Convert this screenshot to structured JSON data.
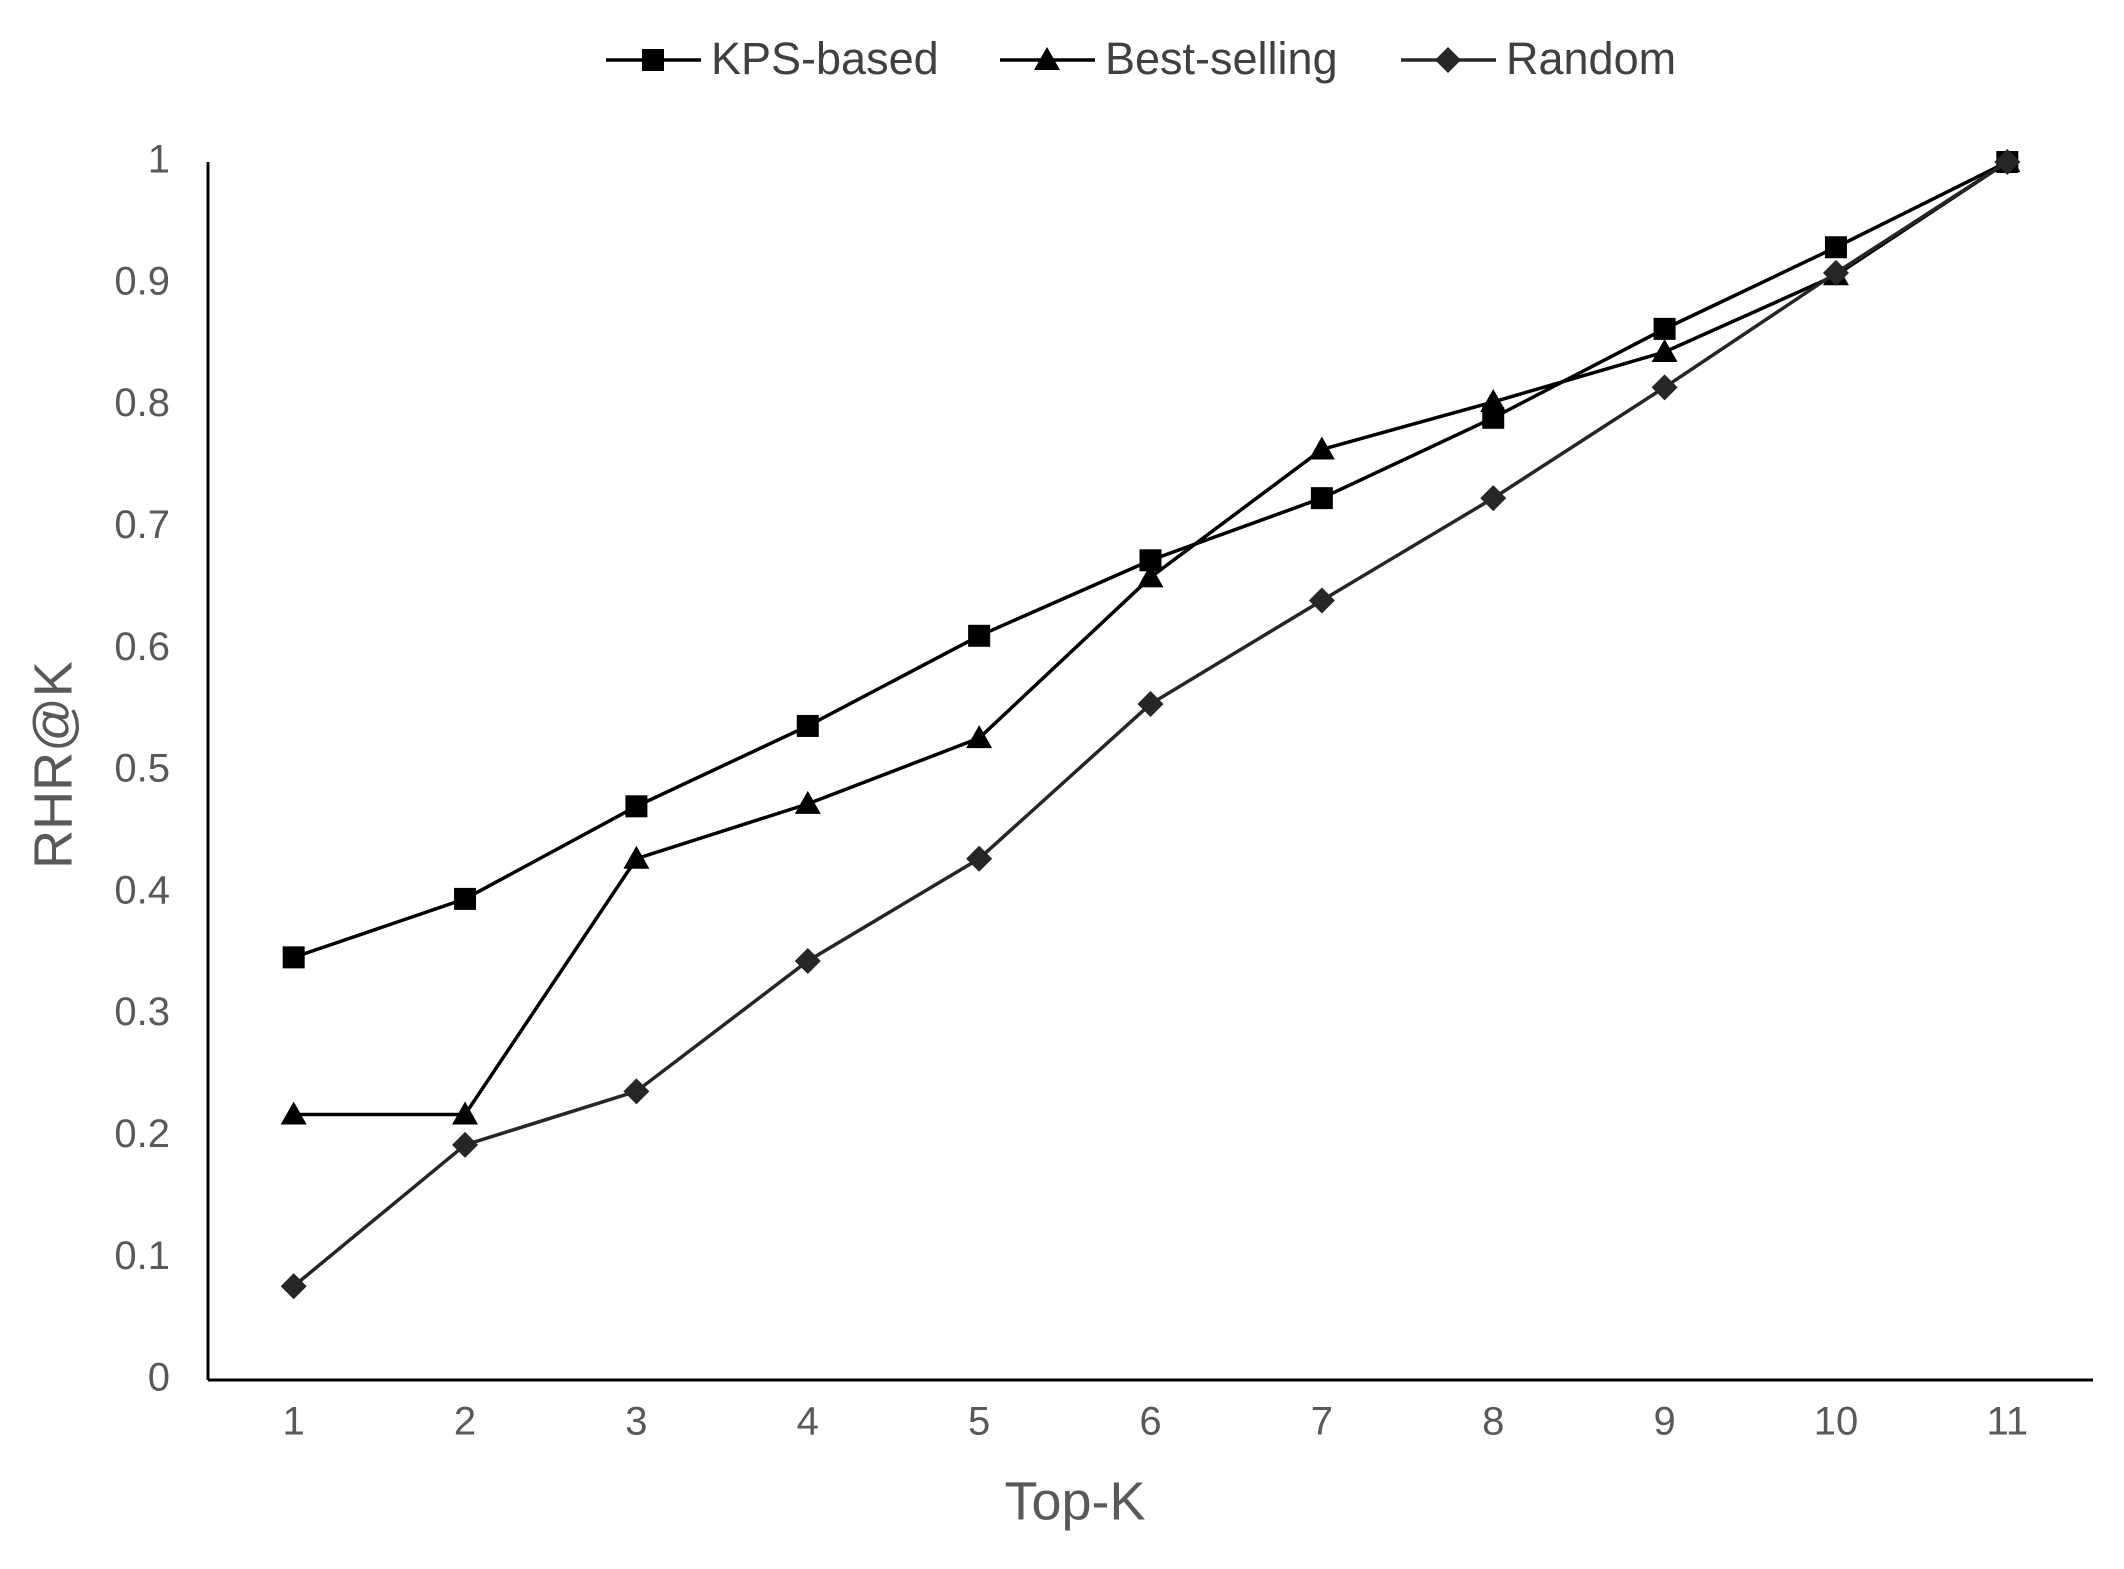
{
  "chart_data": {
    "type": "line",
    "x_label": "Top-K",
    "y_label": "RHR@K",
    "categories": [
      1,
      2,
      3,
      4,
      5,
      6,
      7,
      8,
      9,
      10,
      11
    ],
    "series": [
      {
        "name": "KPS-based",
        "color": "#000000",
        "marker": "square",
        "values": [
          0.347,
          0.395,
          0.471,
          0.537,
          0.611,
          0.673,
          0.724,
          0.79,
          0.863,
          0.93,
          1.0
        ]
      },
      {
        "name": "Best-selling",
        "color": "#000000",
        "marker": "triangle",
        "values": [
          0.218,
          0.218,
          0.428,
          0.473,
          0.527,
          0.659,
          0.764,
          0.803,
          0.844,
          0.907,
          1.0
        ]
      },
      {
        "name": "Random",
        "color": "#262626",
        "marker": "diamond",
        "values": [
          0.077,
          0.193,
          0.237,
          0.344,
          0.428,
          0.555,
          0.64,
          0.724,
          0.815,
          0.909,
          1.0
        ]
      }
    ],
    "ylim": [
      0,
      1
    ],
    "yticks": [
      0,
      0.1,
      0.2,
      0.3,
      0.4,
      0.5,
      0.6,
      0.7,
      0.8,
      0.9,
      1
    ],
    "grid": false,
    "legend": "top"
  }
}
